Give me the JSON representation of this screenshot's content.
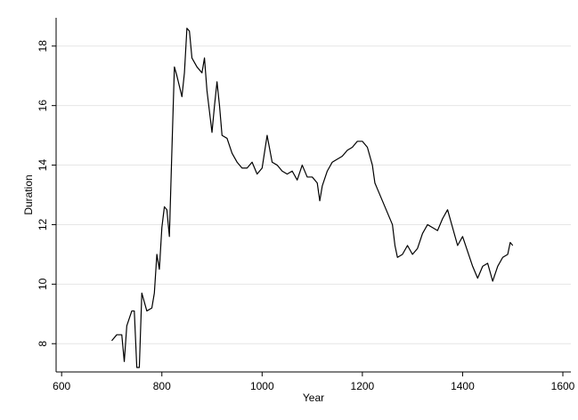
{
  "chart_data": {
    "type": "line",
    "x_label": "Year",
    "y_label": "Duration",
    "xlim": [
      589,
      1616
    ],
    "ylim": [
      7.05,
      18.95
    ],
    "xticks": [
      600,
      800,
      1000,
      1200,
      1400,
      1600
    ],
    "yticks": [
      8,
      10,
      12,
      14,
      16,
      18
    ],
    "grid": true,
    "series": [
      {
        "color": "#000000",
        "x": [
          700,
          710,
          720,
          725,
          730,
          740,
          745,
          750,
          755,
          760,
          770,
          780,
          785,
          790,
          795,
          800,
          805,
          810,
          815,
          820,
          825,
          830,
          840,
          845,
          850,
          855,
          860,
          870,
          880,
          885,
          890,
          900,
          905,
          910,
          915,
          920,
          930,
          940,
          950,
          960,
          970,
          980,
          990,
          1000,
          1010,
          1020,
          1030,
          1040,
          1050,
          1060,
          1070,
          1080,
          1090,
          1100,
          1110,
          1115,
          1120,
          1130,
          1140,
          1150,
          1160,
          1170,
          1180,
          1190,
          1200,
          1210,
          1220,
          1225,
          1230,
          1240,
          1250,
          1260,
          1265,
          1270,
          1280,
          1290,
          1300,
          1310,
          1320,
          1330,
          1340,
          1350,
          1360,
          1370,
          1380,
          1390,
          1400,
          1410,
          1420,
          1430,
          1440,
          1450,
          1460,
          1470,
          1480,
          1490,
          1495,
          1500
        ],
        "values": [
          8.1,
          8.3,
          8.3,
          7.4,
          8.6,
          9.1,
          9.1,
          7.2,
          7.2,
          9.7,
          9.1,
          9.2,
          9.7,
          11.0,
          10.5,
          11.9,
          12.6,
          12.5,
          11.6,
          14.5,
          17.3,
          17.0,
          16.3,
          17.1,
          18.6,
          18.5,
          17.6,
          17.3,
          17.1,
          17.6,
          16.5,
          15.1,
          16.0,
          16.8,
          16.0,
          15.0,
          14.9,
          14.4,
          14.1,
          13.9,
          13.9,
          14.1,
          13.7,
          13.9,
          15.0,
          14.1,
          14.0,
          13.8,
          13.7,
          13.8,
          13.5,
          14.0,
          13.6,
          13.6,
          13.4,
          12.8,
          13.3,
          13.8,
          14.1,
          14.2,
          14.3,
          14.5,
          14.6,
          14.8,
          14.8,
          14.6,
          14.0,
          13.4,
          13.2,
          12.8,
          12.4,
          12.0,
          11.3,
          10.9,
          11.0,
          11.3,
          11.0,
          11.2,
          11.7,
          12.0,
          11.9,
          11.8,
          12.2,
          12.5,
          11.9,
          11.3,
          11.6,
          11.1,
          10.6,
          10.2,
          10.6,
          10.7,
          10.1,
          10.6,
          10.9,
          11.0,
          11.4,
          11.3
        ]
      }
    ]
  }
}
